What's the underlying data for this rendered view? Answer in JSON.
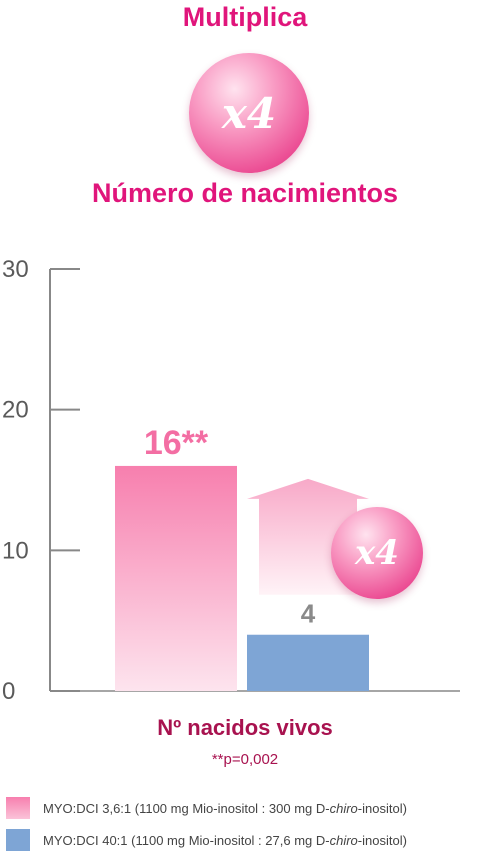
{
  "header": {
    "title": "Multiplica",
    "badge_text": "x4",
    "subtitle": "Número de nacimientos"
  },
  "colors": {
    "brand": "#e0157b",
    "dark_label": "#a8124f",
    "pink_series": "#f77fae",
    "blue_series": "#7ea5d5",
    "axis": "#888888"
  },
  "chart_data": {
    "type": "bar",
    "categories": [
      "Nº nacidos vivos"
    ],
    "xlabel": "Nº nacidos vivos",
    "ylabel": "",
    "ylim": [
      0,
      30
    ],
    "yticks": [
      0,
      10,
      20,
      30
    ],
    "grid": false,
    "series": [
      {
        "name": "MYO:DCI 3,6:1 (1100 mg Mio-inositol : 300 mg D-chiro-inositol)",
        "values": [
          16
        ],
        "label": "16**",
        "color": "#f77fae"
      },
      {
        "name": "MYO:DCI 40:1 (1100 mg Mio-inositol : 27,6 mg D-chiro-inositol)",
        "values": [
          4
        ],
        "label": "4",
        "color": "#7ea5d5"
      }
    ],
    "annotation": "x4",
    "footnote": "**p=0,002"
  },
  "legend": [
    {
      "prefix": "MYO:DCI 3,6:1 (1100 mg Mio-inositol : 300 mg D-",
      "italic": "chiro",
      "suffix": "-inositol)",
      "color": "#f77fae"
    },
    {
      "prefix": "MYO:DCI 40:1 (1100 mg Mio-inositol : 27,6 mg D-",
      "italic": "chiro",
      "suffix": "-inositol)",
      "color": "#7ea5d5"
    }
  ]
}
